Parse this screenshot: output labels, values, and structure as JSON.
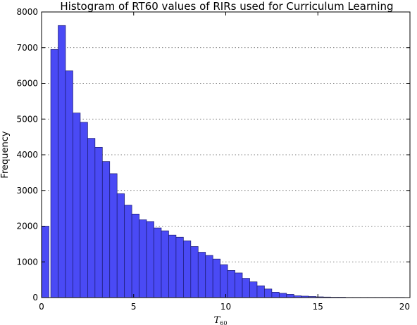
{
  "chart_data": {
    "type": "bar",
    "title": "Histogram of RT60 values of RIRs used for Curriculum Learning",
    "xlabel": "T",
    "xlabel_sub": "60",
    "ylabel": "Frequency",
    "xlim": [
      0,
      20
    ],
    "ylim": [
      0,
      8000
    ],
    "xticks": [
      0,
      5,
      10,
      15,
      20
    ],
    "yticks": [
      0,
      1000,
      2000,
      3000,
      4000,
      5000,
      6000,
      7000,
      8000
    ],
    "grid": "y-dotted",
    "bar_color": "#4a4af5",
    "bar_edge_color": "#1a1a6e",
    "bin_width": 0.4,
    "bins_start": [
      0.0,
      0.5,
      0.9,
      1.3,
      1.7,
      2.1,
      2.5,
      2.9,
      3.3,
      3.7,
      4.1,
      4.5,
      4.9,
      5.3,
      5.7,
      6.1,
      6.5,
      6.9,
      7.3,
      7.7,
      8.1,
      8.5,
      8.9,
      9.3,
      9.7,
      10.1,
      10.5,
      10.9,
      11.3,
      11.7,
      12.1,
      12.5,
      12.9,
      13.3,
      13.7,
      14.1,
      14.5,
      14.9,
      15.3,
      15.7,
      16.1,
      16.5,
      16.9,
      17.3,
      17.7,
      18.1,
      18.5,
      18.9,
      19.3
    ],
    "values": [
      2000,
      6950,
      7620,
      6350,
      5170,
      4910,
      4460,
      4210,
      3810,
      3470,
      2910,
      2590,
      2340,
      2180,
      2130,
      1950,
      1870,
      1750,
      1690,
      1590,
      1430,
      1270,
      1180,
      1080,
      920,
      760,
      690,
      540,
      440,
      330,
      240,
      150,
      120,
      90,
      50,
      40,
      30,
      20,
      15,
      10,
      10,
      5,
      5,
      5,
      5,
      5,
      5,
      5,
      5
    ]
  }
}
